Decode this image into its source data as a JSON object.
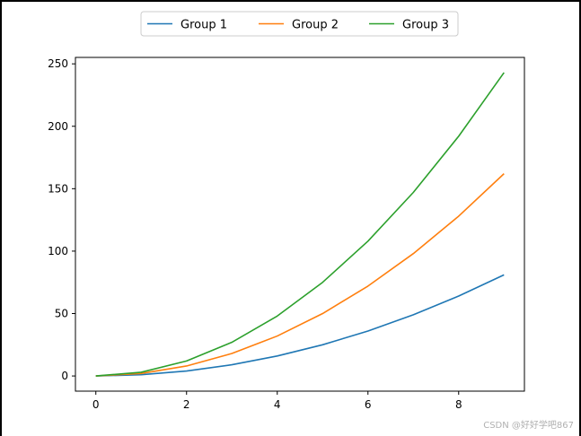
{
  "chart_data": {
    "type": "line",
    "x": [
      0,
      1,
      2,
      3,
      4,
      5,
      6,
      7,
      8,
      9
    ],
    "series": [
      {
        "name": "Group 1",
        "color": "#1f77b4",
        "values": [
          0,
          1,
          4,
          9,
          16,
          25,
          36,
          49,
          64,
          81
        ]
      },
      {
        "name": "Group 2",
        "color": "#ff7f0e",
        "values": [
          0,
          2,
          8,
          18,
          32,
          50,
          72,
          98,
          128,
          162
        ]
      },
      {
        "name": "Group 3",
        "color": "#2ca02c",
        "values": [
          0,
          3,
          12,
          27,
          48,
          75,
          108,
          147,
          192,
          243
        ]
      }
    ],
    "xticks": [
      0,
      2,
      4,
      6,
      8
    ],
    "yticks": [
      0,
      50,
      100,
      150,
      200,
      250
    ],
    "xlim": [
      -0.45,
      9.45
    ],
    "ylim": [
      -12.15,
      255.15
    ],
    "legend_position": "top-center",
    "grid": false
  },
  "watermark": "CSDN @好好学吧867"
}
